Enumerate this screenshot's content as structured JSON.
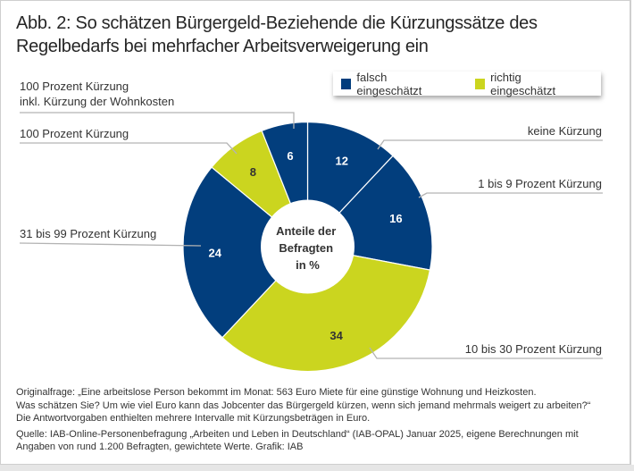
{
  "title_line1": "Abb. 2: So schätzen Bürgergeld-Beziehende die Kürzungssätze des",
  "title_line2": "Regelbedarfs bei mehrfacher Arbeitsverweigerung ein",
  "colors": {
    "falsch": "#023e7d",
    "richtig": "#cbd51f",
    "leader": "#b3b3b3"
  },
  "chart_data": {
    "type": "pie",
    "subtype": "donut",
    "title": "Abb. 2: So schätzen Bürgergeld-Beziehende die Kürzungssätze des Regelbedarfs bei mehrfacher Arbeitsverweigerung ein",
    "center_label": [
      "Anteile der",
      "Befragten",
      "in %"
    ],
    "unit": "%",
    "start": "12 o'clock, clockwise",
    "legend": [
      {
        "key": "falsch",
        "label": "falsch eingeschätzt"
      },
      {
        "key": "richtig",
        "label": "richtig eingeschätzt"
      }
    ],
    "legend_position": "top-right",
    "slices": [
      {
        "label": "keine Kürzung",
        "value": 12,
        "category": "falsch"
      },
      {
        "label": "1 bis 9 Prozent Kürzung",
        "value": 16,
        "category": "falsch"
      },
      {
        "label": "10 bis 30 Prozent Kürzung",
        "value": 34,
        "category": "richtig"
      },
      {
        "label": "31 bis 99 Prozent Kürzung",
        "value": 24,
        "category": "falsch"
      },
      {
        "label": "100 Prozent Kürzung",
        "value": 8,
        "category": "richtig"
      },
      {
        "label": "100 Prozent Kürzung inkl. Kürzung der Wohnkosten",
        "value": 6,
        "category": "falsch"
      }
    ]
  },
  "slice_label_lines": {
    "keine": [
      "keine Kürzung"
    ],
    "one_to_nine": [
      "1 bis 9 Prozent Kürzung"
    ],
    "ten_to_thirty": [
      "10 bis 30 Prozent Kürzung"
    ],
    "thirtyone": [
      "31 bis 99 Prozent Kürzung"
    ],
    "hundred": [
      "100 Prozent Kürzung"
    ],
    "hundred_inkl": [
      "100 Prozent Kürzung",
      "inkl. Kürzung der Wohnkosten"
    ]
  },
  "footer": {
    "question_line1": "Originalfrage: „Eine arbeitslose Person bekommt im Monat: 563 Euro Miete für eine günstige Wohnung und Heizkosten.",
    "question_line2": "Was schätzen Sie? Um wie viel Euro kann das Jobcenter das Bürgergeld kürzen, wenn sich jemand mehrmals weigert zu arbeiten?“",
    "question_line3": "Die Antwortvorgaben enthielten mehrere Intervalle mit Kürzungsbeträgen in Euro.",
    "source_line1": "Quelle: IAB-Online-Personenbefragung „Arbeiten und Leben in Deutschland“ (IAB-OPAL) Januar 2025, eigene Berechnungen mit",
    "source_line2": "Angaben von rund 1.200 Befragten, gewichtete Werte. Grafik: IAB"
  }
}
